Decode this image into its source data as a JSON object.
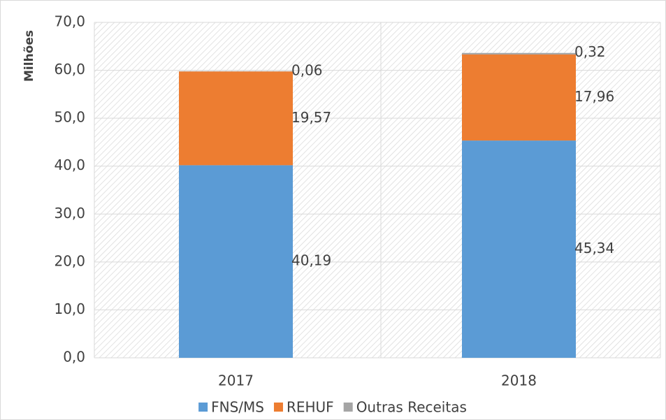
{
  "chart_data": {
    "type": "stacked_bar",
    "y_label": "Milhões",
    "categories": [
      "2017",
      "2018"
    ],
    "series": [
      {
        "name": "FNS/MS",
        "color": "#5b9bd5",
        "values": [
          40.19,
          45.34
        ],
        "value_labels": [
          "40,19",
          "45,34"
        ]
      },
      {
        "name": "REHUF",
        "color": "#ed7d31",
        "values": [
          19.57,
          17.96
        ],
        "value_labels": [
          "19,57",
          "17,96"
        ]
      },
      {
        "name": "Outras Receitas",
        "color": "#a5a5a5",
        "values": [
          0.06,
          0.32
        ],
        "value_labels": [
          "0,06",
          "0,32"
        ]
      }
    ],
    "ylim": [
      0,
      70
    ],
    "yticks": [
      {
        "value": 0,
        "label": "0,0"
      },
      {
        "value": 10,
        "label": "10,0"
      },
      {
        "value": 20,
        "label": "20,0"
      },
      {
        "value": 30,
        "label": "30,0"
      },
      {
        "value": 40,
        "label": "40,0"
      },
      {
        "value": 50,
        "label": "50,0"
      },
      {
        "value": 60,
        "label": "60,0"
      },
      {
        "value": 70,
        "label": "70,0"
      }
    ],
    "grid": true,
    "legend": "bottom"
  }
}
